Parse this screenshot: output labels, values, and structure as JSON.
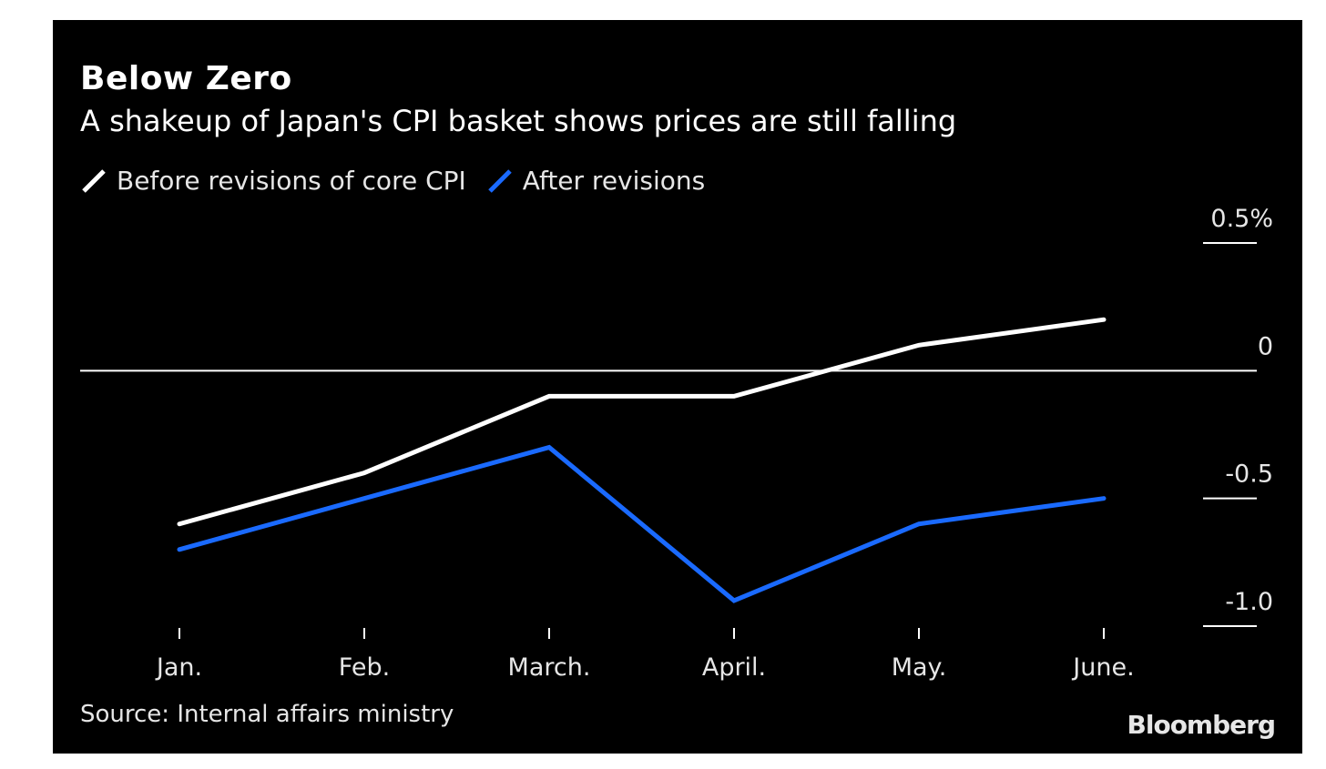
{
  "colors": {
    "background": "#000000",
    "before_line": "#ffffff",
    "after_line": "#1a6aff",
    "text": "#e6e6e6"
  },
  "header": {
    "title": "Below Zero",
    "subtitle": "A shakeup of Japan's CPI basket shows prices are still falling"
  },
  "footer": {
    "source": "Source: Internal affairs ministry",
    "brand": "Bloomberg"
  },
  "chart_data": {
    "type": "line",
    "categories": [
      "Jan.",
      "Feb.",
      "March.",
      "April.",
      "May.",
      "June."
    ],
    "series": [
      {
        "name": "Before revisions of core CPI",
        "values": [
          -0.6,
          -0.4,
          -0.1,
          -0.1,
          0.1,
          0.2
        ]
      },
      {
        "name": "After revisions",
        "values": [
          -0.7,
          -0.5,
          -0.3,
          -0.9,
          -0.6,
          -0.5
        ]
      }
    ],
    "ylim": [
      -1.0,
      0.5
    ],
    "yticks": [
      0.5,
      0,
      -0.5,
      -1.0
    ],
    "ytick_labels": [
      "0.5%",
      "0",
      "-0.5",
      "-1.0"
    ],
    "zero_line": true,
    "legend_position": "top-left"
  }
}
